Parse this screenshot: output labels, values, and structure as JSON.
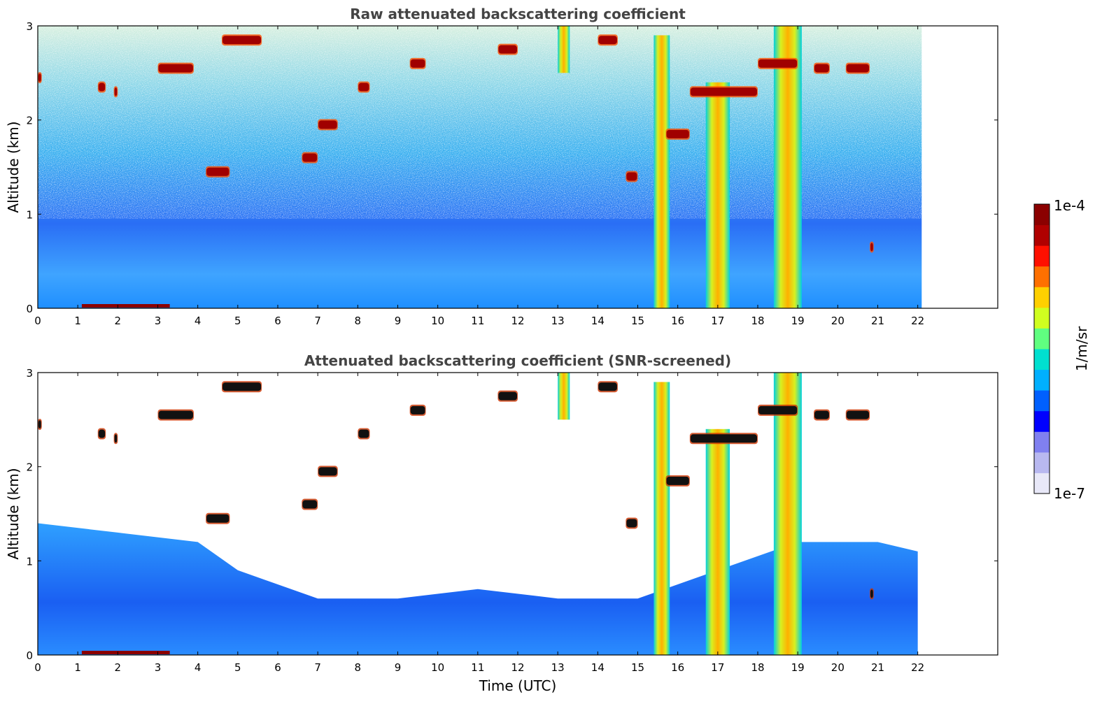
{
  "figure": {
    "xlabel": "Time (UTC)"
  },
  "colorbar": {
    "max_label": "1e-4",
    "min_label": "1e-7",
    "label": "1/m/sr",
    "colors": [
      "#e8e8f8",
      "#b8b8f0",
      "#8080f0",
      "#0000ff",
      "#0060ff",
      "#00b0ff",
      "#00e0d0",
      "#60ff80",
      "#d0ff20",
      "#ffd000",
      "#ff7000",
      "#ff1000",
      "#b00000",
      "#8b0000"
    ]
  },
  "chart_data": [
    {
      "type": "heatmap",
      "title": "Raw attenuated backscattering coefficient",
      "xlabel": "",
      "ylabel": "Altitude (km)",
      "xlim": [
        0,
        24
      ],
      "ylim": [
        0,
        3
      ],
      "xticks": [
        "0",
        "1",
        "2",
        "3",
        "4",
        "5",
        "6",
        "7",
        "8",
        "9",
        "10",
        "11",
        "12",
        "13",
        "14",
        "15",
        "16",
        "17",
        "18",
        "19",
        "20",
        "21",
        "22"
      ],
      "yticks": [
        "0",
        "1",
        "2",
        "3"
      ],
      "data_end_time": 22.1,
      "scale": "log",
      "vmin": 1e-07,
      "vmax": 0.0001,
      "cloud_layers": [
        {
          "t0": 0.0,
          "t1": 0.1,
          "alt": 2.45
        },
        {
          "t0": 1.5,
          "t1": 1.7,
          "alt": 2.35
        },
        {
          "t0": 1.9,
          "t1": 2.0,
          "alt": 2.3
        },
        {
          "t0": 3.0,
          "t1": 3.9,
          "alt": 2.55
        },
        {
          "t0": 4.6,
          "t1": 5.6,
          "alt": 2.85
        },
        {
          "t0": 4.2,
          "t1": 4.8,
          "alt": 1.45
        },
        {
          "t0": 6.6,
          "t1": 7.0,
          "alt": 1.6
        },
        {
          "t0": 7.0,
          "t1": 7.5,
          "alt": 1.95
        },
        {
          "t0": 8.0,
          "t1": 8.3,
          "alt": 2.35
        },
        {
          "t0": 9.3,
          "t1": 9.7,
          "alt": 2.6
        },
        {
          "t0": 11.5,
          "t1": 12.0,
          "alt": 2.75
        },
        {
          "t0": 14.0,
          "t1": 14.5,
          "alt": 2.85
        },
        {
          "t0": 14.7,
          "t1": 15.0,
          "alt": 1.4
        },
        {
          "t0": 15.7,
          "t1": 16.3,
          "alt": 1.85
        },
        {
          "t0": 16.3,
          "t1": 18.0,
          "alt": 2.3
        },
        {
          "t0": 18.0,
          "t1": 19.0,
          "alt": 2.6
        },
        {
          "t0": 19.4,
          "t1": 19.8,
          "alt": 2.55
        },
        {
          "t0": 20.2,
          "t1": 20.8,
          "alt": 2.55
        },
        {
          "t0": 20.8,
          "t1": 20.9,
          "alt": 0.65
        }
      ],
      "precip_columns": [
        {
          "t0": 13.0,
          "t1": 13.3,
          "top": 3.0,
          "bottom": 2.5
        },
        {
          "t0": 15.4,
          "t1": 15.8,
          "top": 2.9,
          "bottom": 0.0
        },
        {
          "t0": 16.7,
          "t1": 17.3,
          "top": 2.4,
          "bottom": 0.0
        },
        {
          "t0": 18.4,
          "t1": 19.1,
          "top": 3.0,
          "bottom": 0.0
        }
      ]
    },
    {
      "type": "heatmap",
      "title": "Attenuated backscattering coefficient (SNR-screened)",
      "xlabel": "Time (UTC)",
      "ylabel": "Altitude (km)",
      "xlim": [
        0,
        24
      ],
      "ylim": [
        0,
        3
      ],
      "xticks": [
        "0",
        "1",
        "2",
        "3",
        "4",
        "5",
        "6",
        "7",
        "8",
        "9",
        "10",
        "11",
        "12",
        "13",
        "14",
        "15",
        "16",
        "17",
        "18",
        "19",
        "20",
        "21",
        "22"
      ],
      "yticks": [
        "0",
        "1",
        "2",
        "3"
      ],
      "data_end_time": 22.1,
      "scale": "log",
      "vmin": 1e-07,
      "vmax": 0.0001,
      "boundary_layer_top": [
        {
          "t": 0,
          "alt": 1.4
        },
        {
          "t": 2,
          "alt": 1.3
        },
        {
          "t": 4,
          "alt": 1.2
        },
        {
          "t": 5,
          "alt": 0.9
        },
        {
          "t": 7,
          "alt": 0.6
        },
        {
          "t": 9,
          "alt": 0.6
        },
        {
          "t": 11,
          "alt": 0.7
        },
        {
          "t": 13,
          "alt": 0.6
        },
        {
          "t": 15,
          "alt": 0.6
        },
        {
          "t": 17,
          "alt": 0.9
        },
        {
          "t": 19,
          "alt": 1.2
        },
        {
          "t": 21,
          "alt": 1.2
        },
        {
          "t": 22,
          "alt": 1.1
        }
      ]
    }
  ]
}
